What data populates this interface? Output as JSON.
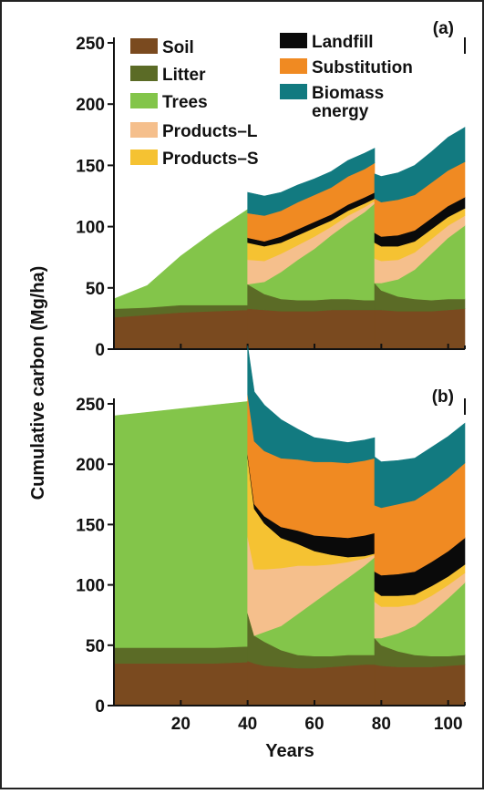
{
  "chart_data": {
    "type": "area",
    "ylabel": "Cumulative carbon (Mg/ha)",
    "xlabel": "Years",
    "x_ticks": [
      20,
      40,
      60,
      80,
      100
    ],
    "y_ticks": [
      0,
      50,
      100,
      150,
      200,
      250
    ],
    "xlim": [
      0,
      105
    ],
    "stack_order": [
      "Soil",
      "Litter",
      "Trees",
      "Products–L",
      "Products–S",
      "Landfill",
      "Substitution",
      "Biomass energy"
    ],
    "colors": {
      "Soil": "#7a4a1f",
      "Litter": "#5b6b26",
      "Trees": "#83c54a",
      "Products–L": "#f5bf8c",
      "Products–S": "#f5c232",
      "Landfill": "#0a0a0a",
      "Substitution": "#f08a22",
      "Biomass energy": "#127a80"
    },
    "legend": [
      {
        "label": "Soil",
        "key": "Soil"
      },
      {
        "label": "Litter",
        "key": "Litter"
      },
      {
        "label": "Trees",
        "key": "Trees"
      },
      {
        "label": "Products–L",
        "key": "Products–L"
      },
      {
        "label": "Products–S",
        "key": "Products–S"
      },
      {
        "label": "Landfill",
        "key": "Landfill"
      },
      {
        "label": "Substitution",
        "key": "Substitution"
      },
      {
        "label": "Biomass",
        "label2": "energy",
        "key": "Biomass energy"
      }
    ],
    "panels": [
      {
        "label": "(a)",
        "ylim": [
          0,
          260
        ],
        "segments": [
          {
            "x": [
              0,
              10,
              20,
              30,
              40
            ],
            "series": {
              "Soil": [
                26,
                28,
                30,
                31,
                32
              ],
              "Litter": [
                7,
                6,
                6,
                5,
                4
              ],
              "Trees": [
                8,
                18,
                40,
                60,
                78
              ]
            }
          },
          {
            "x": [
              40,
              45,
              50,
              55,
              60,
              65,
              70,
              75,
              78
            ],
            "series": {
              "Soil": [
                33,
                32,
                31,
                31,
                31,
                32,
                32,
                32,
                32
              ],
              "Litter": [
                20,
                13,
                10,
                9,
                9,
                9,
                9,
                8,
                8
              ],
              "Trees": [
                0,
                10,
                22,
                33,
                42,
                52,
                62,
                72,
                79
              ],
              "Products–L": [
                20,
                17,
                15,
                12,
                10,
                7,
                6,
                4,
                2
              ],
              "Products–S": [
                14,
                12,
                9,
                8,
                7,
                5,
                4,
                3,
                2
              ],
              "Landfill": [
                4,
                4,
                5,
                5,
                5,
                5,
                5,
                5,
                5
              ],
              "Substitution": [
                20,
                21,
                21,
                22,
                22,
                22,
                23,
                23,
                24
              ],
              "Biomass energy": [
                17,
                16,
                15,
                14,
                13,
                13,
                13,
                13,
                12
              ]
            }
          },
          {
            "x": [
              78,
              80,
              85,
              90,
              95,
              100,
              105
            ],
            "series": {
              "Soil": [
                32,
                32,
                31,
                31,
                31,
                32,
                33
              ],
              "Litter": [
                22,
                16,
                12,
                10,
                9,
                9,
                8
              ],
              "Trees": [
                0,
                6,
                14,
                24,
                38,
                50,
                60
              ],
              "Products–L": [
                20,
                18,
                16,
                14,
                12,
                10,
                8
              ],
              "Products–S": [
                13,
                12,
                11,
                9,
                8,
                7,
                6
              ],
              "Landfill": [
                8,
                8,
                9,
                9,
                9,
                9,
                9
              ],
              "Substitution": [
                28,
                28,
                29,
                29,
                29,
                29,
                29
              ],
              "Biomass energy": [
                20,
                21,
                22,
                24,
                25,
                27,
                28
              ]
            }
          }
        ]
      },
      {
        "label": "(b)",
        "ylim": [
          0,
          260
        ],
        "segments": [
          {
            "x": [
              0,
              10,
              20,
              30,
              40
            ],
            "series": {
              "Soil": [
                35,
                35,
                35,
                35,
                36
              ],
              "Litter": [
                13,
                13,
                13,
                13,
                13
              ],
              "Trees": [
                192,
                195,
                198,
                201,
                203
              ]
            }
          },
          {
            "x": [
              40,
              42,
              45,
              50,
              55,
              60,
              65,
              70,
              75,
              78
            ],
            "series": {
              "Soil": [
                37,
                35,
                33,
                32,
                31,
                31,
                32,
                33,
                34,
                34
              ],
              "Litter": [
                40,
                23,
                20,
                14,
                11,
                10,
                9,
                9,
                8,
                8
              ],
              "Trees": [
                0,
                0,
                8,
                20,
                34,
                45,
                55,
                64,
                74,
                81
              ],
              "Products–L": [
                63,
                55,
                52,
                48,
                40,
                30,
                21,
                13,
                6,
                2
              ],
              "Products–S": [
                66,
                50,
                38,
                25,
                18,
                12,
                8,
                4,
                2,
                1
              ],
              "Landfill": [
                2,
                4,
                6,
                9,
                11,
                13,
                15,
                16,
                17,
                17
              ],
              "Substitution": [
                50,
                52,
                54,
                57,
                59,
                61,
                62,
                62,
                62,
                62
              ],
              "Biomass energy": [
                40,
                41,
                38,
                32,
                25,
                20,
                18,
                17,
                17,
                17
              ]
            }
          },
          {
            "x": [
              78,
              80,
              85,
              90,
              95,
              100,
              105
            ],
            "series": {
              "Soil": [
                34,
                33,
                32,
                32,
                32,
                33,
                34
              ],
              "Litter": [
                22,
                17,
                13,
                10,
                9,
                8,
                8
              ],
              "Trees": [
                0,
                6,
                15,
                24,
                36,
                48,
                60
              ],
              "Products–L": [
                30,
                26,
                22,
                18,
                14,
                11,
                8
              ],
              "Products–S": [
                9,
                9,
                9,
                8,
                8,
                7,
                7
              ],
              "Landfill": [
                16,
                17,
                18,
                19,
                20,
                21,
                22
              ],
              "Substitution": [
                55,
                56,
                58,
                59,
                60,
                61,
                62
              ],
              "Biomass energy": [
                40,
                38,
                36,
                35,
                35,
                34,
                33
              ]
            }
          }
        ]
      }
    ]
  }
}
